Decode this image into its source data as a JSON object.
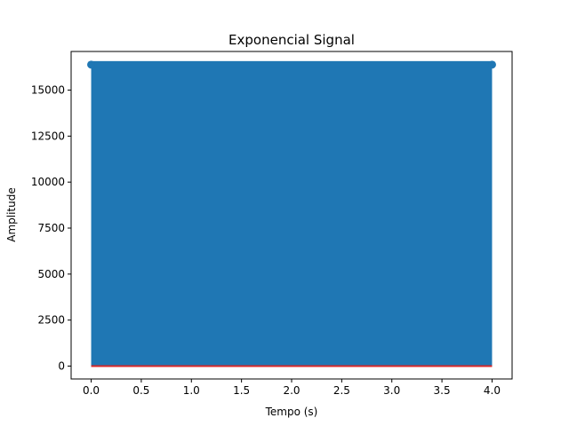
{
  "chart_data": {
    "type": "stem",
    "title": "Exponencial Signal",
    "xlabel": "Tempo (s)",
    "ylabel": "Amplitude",
    "xlim": [
      -0.2,
      4.2
    ],
    "ylim": [
      -700,
      17100
    ],
    "x_ticks": [
      0.0,
      0.5,
      1.0,
      1.5,
      2.0,
      2.5,
      3.0,
      3.5,
      4.0
    ],
    "x_tick_labels": [
      "0.0",
      "0.5",
      "1.0",
      "1.5",
      "2.0",
      "2.5",
      "3.0",
      "3.5",
      "4.0"
    ],
    "y_ticks": [
      0,
      2500,
      5000,
      7500,
      10000,
      12500,
      15000
    ],
    "y_tick_labels": [
      "0",
      "2500",
      "5000",
      "7500",
      "10000",
      "12500",
      "15000"
    ],
    "grid": false,
    "series": [
      {
        "x_range": [
          0.0,
          4.0
        ],
        "stem_bottom": 0,
        "stem_top": 16384,
        "marker_value": 16384,
        "color": "#1f77b4",
        "baseline_color": "#d62728"
      }
    ]
  }
}
